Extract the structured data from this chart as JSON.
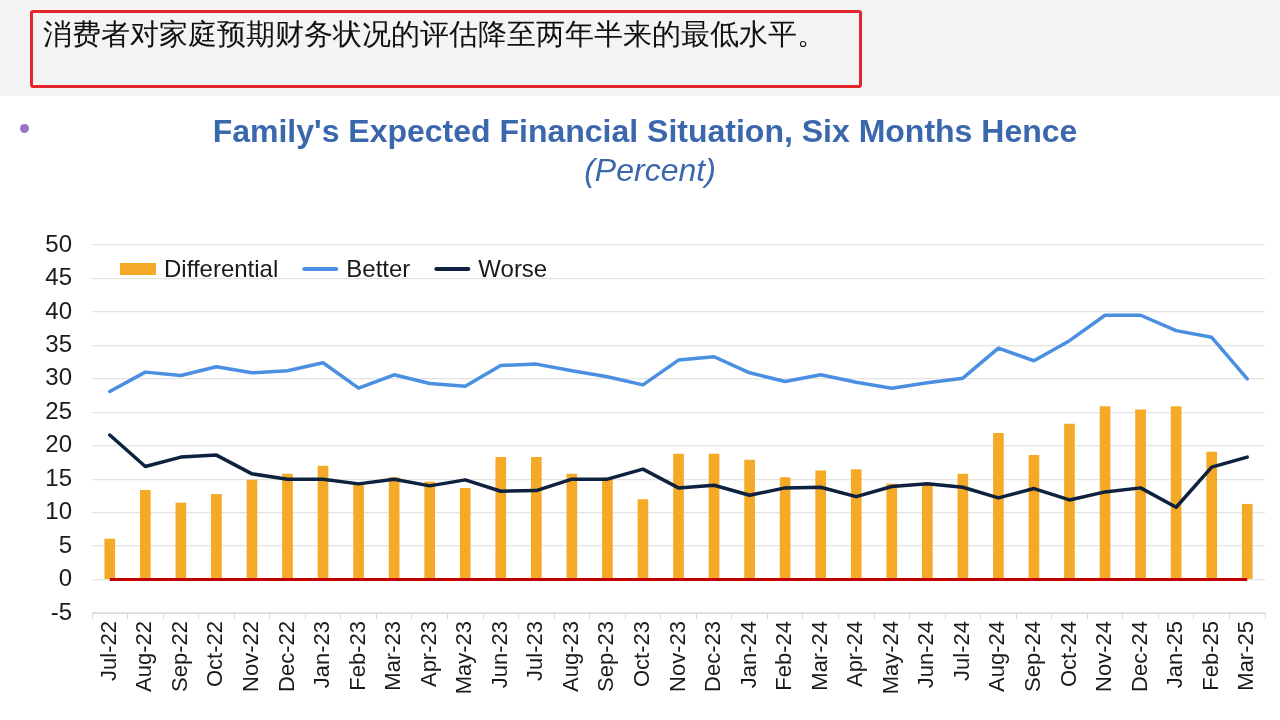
{
  "chart_data": {
    "type": "bar",
    "title": "Family's Expected Financial Situation, Six Months Hence",
    "subtitle": "(Percent)",
    "annotations": [
      "消费者对家庭预期财务状况的评估降至两年半来的最低水平。"
    ],
    "categories": [
      "Jul-22",
      "Aug-22",
      "Sep-22",
      "Oct-22",
      "Nov-22",
      "Dec-22",
      "Jan-23",
      "Feb-23",
      "Mar-23",
      "Apr-23",
      "May-23",
      "Jun-23",
      "Jul-23",
      "Aug-23",
      "Sep-23",
      "Oct-23",
      "Nov-23",
      "Dec-23",
      "Jan-24",
      "Feb-24",
      "Mar-24",
      "Apr-24",
      "May-24",
      "Jun-24",
      "Jul-24",
      "Aug-24",
      "Sep-24",
      "Oct-24",
      "Nov-24",
      "Dec-24",
      "Jan-25",
      "Feb-25",
      "Mar-25"
    ],
    "series": [
      {
        "name": "Differential",
        "color": "#f4a927",
        "values": [
          6.1,
          13.4,
          11.5,
          12.8,
          14.9,
          15.8,
          17.0,
          14.3,
          15.3,
          14.6,
          13.7,
          18.3,
          18.3,
          15.8,
          15.2,
          12.0,
          18.8,
          18.8,
          17.9,
          15.3,
          16.3,
          16.5,
          14.3,
          14.2,
          15.8,
          21.9,
          18.6,
          23.3,
          25.9,
          25.4,
          25.9,
          19.1,
          11.3
        ]
      },
      {
        "name": "Better",
        "type": "line",
        "color": "#4a8fe2",
        "values": [
          28.1,
          31.0,
          30.5,
          31.8,
          30.9,
          31.2,
          32.4,
          28.6,
          30.6,
          29.3,
          28.9,
          32.0,
          32.2,
          31.2,
          30.3,
          29.1,
          32.8,
          33.3,
          30.9,
          29.6,
          30.6,
          29.5,
          28.6,
          29.4,
          30.1,
          34.6,
          32.7,
          35.7,
          39.5,
          39.5,
          37.2,
          36.2,
          30.0
        ]
      },
      {
        "name": "Worse",
        "type": "line",
        "color": "#0e2240",
        "values": [
          21.6,
          16.9,
          18.3,
          18.6,
          15.8,
          15.0,
          15.0,
          14.3,
          15.0,
          14.0,
          14.9,
          13.2,
          13.3,
          15.0,
          15.0,
          16.5,
          13.7,
          14.1,
          12.6,
          13.7,
          13.8,
          12.4,
          13.9,
          14.3,
          13.8,
          12.2,
          13.6,
          11.9,
          13.1,
          13.7,
          10.8,
          16.8,
          18.3
        ]
      }
    ],
    "ylim": [
      -5,
      50
    ],
    "yticks": [
      -5,
      0,
      5,
      10,
      15,
      20,
      25,
      30,
      35,
      40,
      45,
      50
    ],
    "grid": "y",
    "legend": "top left",
    "marker": "none",
    "line_style": "solid",
    "ref_lines": [
      {
        "axis": "y",
        "value": 0,
        "color": "#c00000"
      }
    ]
  }
}
